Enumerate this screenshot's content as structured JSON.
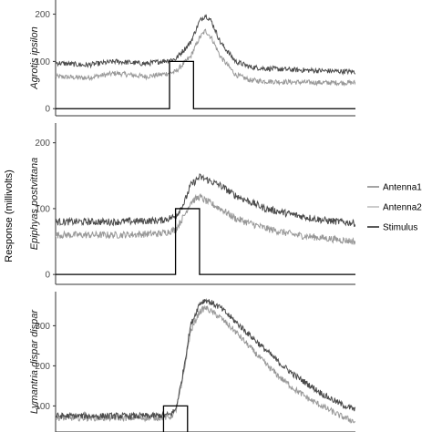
{
  "chart_data": {
    "type": "line",
    "ylabel": "Response (millivolts)",
    "x_range": [
      0,
      100
    ],
    "legend": {
      "placement": "right",
      "entries": [
        {
          "name": "Antenna1",
          "color": "#4a4a4a"
        },
        {
          "name": "Antenna2",
          "color": "#999999"
        },
        {
          "name": "Stimulus",
          "color": "#000000"
        }
      ]
    },
    "grid": false,
    "panels": [
      {
        "strip": "Agrotis ipsilon",
        "ylim": [
          -15,
          230
        ],
        "yticks": [
          0,
          100,
          200
        ],
        "series": [
          {
            "name": "Antenna1",
            "x": [
              0,
              10,
              20,
              30,
              35,
              40,
              45,
              48,
              50,
              52,
              55,
              60,
              65,
              70,
              80,
              90,
              100
            ],
            "values": [
              97,
              92,
              100,
              95,
              100,
              105,
              140,
              185,
              198,
              185,
              140,
              100,
              88,
              85,
              82,
              80,
              78
            ]
          },
          {
            "name": "Antenna2",
            "x": [
              0,
              10,
              20,
              30,
              35,
              40,
              45,
              48,
              50,
              52,
              55,
              60,
              65,
              70,
              80,
              90,
              100
            ],
            "values": [
              68,
              65,
              75,
              68,
              72,
              78,
              110,
              150,
              165,
              150,
              110,
              72,
              60,
              58,
              56,
              55,
              55
            ]
          },
          {
            "name": "Stimulus",
            "x": [
              0,
              38,
              38,
              46,
              46,
              100
            ],
            "values": [
              0,
              0,
              100,
              100,
              0,
              0
            ]
          }
        ]
      },
      {
        "strip": "Epiphyas postvittana",
        "ylim": [
          -15,
          230
        ],
        "yticks": [
          0,
          100,
          200
        ],
        "series": [
          {
            "name": "Antenna1",
            "x": [
              0,
              20,
              35,
              40,
              43,
              45,
              48,
              50,
              55,
              60,
              70,
              80,
              90,
              100
            ],
            "values": [
              80,
              80,
              82,
              88,
              110,
              135,
              148,
              145,
              135,
              120,
              100,
              90,
              82,
              78
            ]
          },
          {
            "name": "Antenna2",
            "x": [
              0,
              20,
              35,
              40,
              43,
              45,
              48,
              50,
              55,
              60,
              70,
              80,
              90,
              100
            ],
            "values": [
              60,
              60,
              62,
              68,
              90,
              110,
              118,
              112,
              100,
              85,
              70,
              60,
              55,
              50
            ]
          },
          {
            "name": "Stimulus",
            "x": [
              0,
              40,
              40,
              48,
              48,
              100
            ],
            "values": [
              0,
              0,
              100,
              100,
              0,
              0
            ]
          }
        ]
      },
      {
        "strip": "Lymantria dispar dispar",
        "ylim": [
          35,
          385
        ],
        "yticks": [
          100,
          200,
          300
        ],
        "series": [
          {
            "name": "Antenna1",
            "x": [
              0,
              10,
              20,
              30,
              35,
              38,
              40,
              42,
              45,
              48,
              50,
              55,
              60,
              65,
              70,
              75,
              80,
              85,
              90,
              95,
              100
            ],
            "values": [
              75,
              75,
              75,
              75,
              76,
              78,
              90,
              160,
              300,
              355,
              365,
              345,
              310,
              275,
              240,
              205,
              175,
              150,
              125,
              105,
              90
            ]
          },
          {
            "name": "Antenna2",
            "x": [
              0,
              10,
              20,
              30,
              35,
              38,
              40,
              42,
              45,
              48,
              50,
              55,
              60,
              65,
              70,
              75,
              80,
              85,
              90,
              95,
              100
            ],
            "values": [
              70,
              70,
              70,
              70,
              71,
              72,
              85,
              150,
              285,
              335,
              345,
              320,
              285,
              245,
              205,
              170,
              140,
              115,
              95,
              75,
              60
            ]
          },
          {
            "name": "Stimulus",
            "x": [
              0,
              36,
              36,
              44,
              44,
              100
            ],
            "values": [
              0,
              0,
              100,
              100,
              0,
              0
            ]
          }
        ]
      }
    ]
  }
}
